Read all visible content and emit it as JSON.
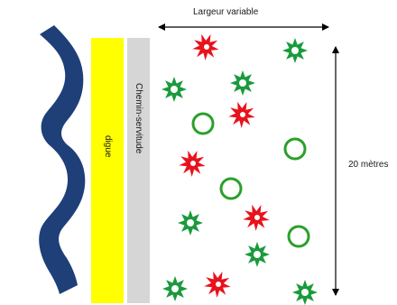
{
  "labels": {
    "digue": "digue",
    "chemin": "Chemin-servitude",
    "largeur": "Largeur variable",
    "hauteur": "20 mètres"
  },
  "colors": {
    "river": "#1f3f78",
    "digue": "#ffff00",
    "chemin": "#d6d6d6",
    "red_shrub": "#e8121c",
    "green_shrub": "#1a9a3c",
    "tree_ring": "#2aa02a",
    "arrow": "#000000"
  },
  "legend_icons": {
    "red": "red-starburst-icon",
    "green": "green-starburst-icon",
    "ring": "green-circle-icon"
  }
}
